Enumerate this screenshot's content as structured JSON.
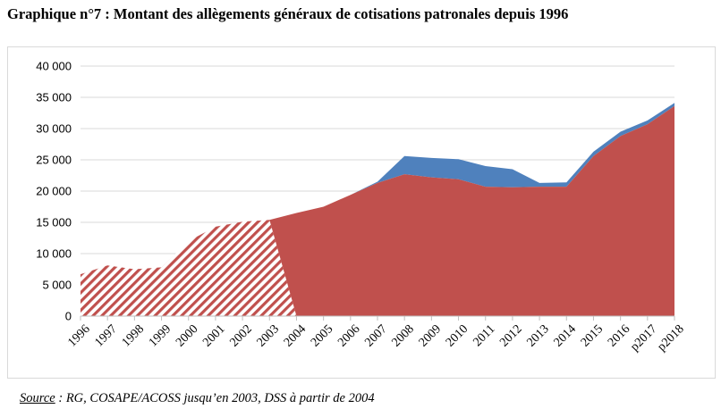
{
  "title": "Graphique n°7 : Montant des allègements généraux de cotisations patronales depuis 1996",
  "source": {
    "label": "Source",
    "text": " : RG, COSAPE/ACOSS jusqu’en 2003, DSS à partir de 2004"
  },
  "colors": {
    "main": "#c0504d",
    "top": "#4f81bd",
    "hatch": "#c0504d",
    "grid": "#d9d9d9",
    "axis": "#bfbfbf"
  },
  "chart_data": {
    "type": "area",
    "title": "Graphique n°7 : Montant des allègements généraux de cotisations patronales depuis 1996",
    "xlabel": "",
    "ylabel": "",
    "ylim": [
      0,
      40000
    ],
    "yticks": [
      0,
      5000,
      10000,
      15000,
      20000,
      25000,
      30000,
      35000,
      40000
    ],
    "ytick_labels": [
      "0",
      "5 000",
      "10 000",
      "15 000",
      "20 000",
      "25 000",
      "30 000",
      "35 000",
      "40 000"
    ],
    "categories": [
      "1996",
      "1997",
      "1998",
      "1999",
      "2000",
      "2001",
      "2002",
      "2003",
      "2004",
      "2005",
      "2006",
      "2007",
      "2008",
      "2009",
      "2010",
      "2011",
      "2012",
      "2013",
      "2014",
      "2015",
      "2016",
      "p2017",
      "p2018"
    ],
    "grid": true,
    "legend": "none",
    "stacked": true,
    "series": [
      {
        "key": "hatched",
        "values": [
          6700,
          8100,
          7500,
          7800,
          12000,
          14300,
          15100,
          15400,
          null,
          null,
          null,
          null,
          null,
          null,
          null,
          null,
          null,
          null,
          null,
          null,
          null,
          null,
          null
        ]
      },
      {
        "key": "main",
        "values": [
          null,
          null,
          null,
          null,
          null,
          null,
          null,
          15400,
          16500,
          17500,
          19400,
          21300,
          22700,
          22200,
          21900,
          20700,
          20600,
          20700,
          20700,
          25600,
          28800,
          30700,
          33600
        ]
      },
      {
        "key": "top",
        "values": [
          null,
          null,
          null,
          null,
          null,
          null,
          null,
          null,
          0,
          0,
          0,
          200,
          2900,
          3100,
          3200,
          3300,
          2900,
          600,
          700,
          700,
          700,
          600,
          500
        ]
      }
    ]
  }
}
